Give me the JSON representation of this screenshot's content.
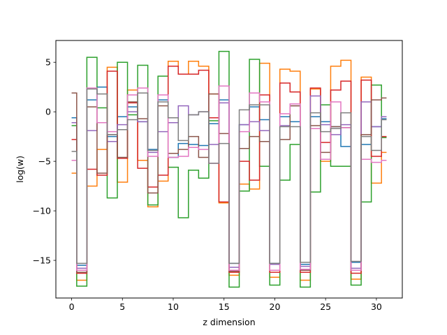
{
  "chart_data": {
    "type": "line",
    "drawstyle": "steps-mid",
    "xlabel": "z dimension",
    "ylabel": "log(w)",
    "xlim": [
      -1.55,
      32.55
    ],
    "ylim": [
      -18.8,
      7.2
    ],
    "xticks": [
      0,
      5,
      10,
      15,
      20,
      25,
      30
    ],
    "yticks": [
      -15,
      -10,
      -5,
      0,
      5
    ],
    "grid": false,
    "legend": "none",
    "x": [
      0,
      1,
      2,
      3,
      4,
      5,
      6,
      7,
      8,
      9,
      10,
      11,
      12,
      13,
      14,
      15,
      16,
      17,
      18,
      19,
      20,
      21,
      22,
      23,
      24,
      25,
      26,
      27,
      28,
      29,
      30,
      31
    ],
    "series": [
      {
        "color": "#1f77b4",
        "values": [
          -0.6,
          -15.5,
          1.2,
          2.5,
          -2.5,
          -0.5,
          0.5,
          -1.0,
          -3.8,
          1.2,
          -4.6,
          -3.2,
          -3.3,
          -3.4,
          -1.2,
          1.2,
          -15.3,
          -1.3,
          0.5,
          -0.8,
          -15.3,
          -0.5,
          -1.0,
          -15.4,
          -0.5,
          -1.0,
          -1.5,
          -3.5,
          -15.2,
          -3.3,
          -1.5,
          -0.7
        ]
      },
      {
        "color": "#ff7f0e",
        "values": [
          -6.2,
          -17.0,
          -7.5,
          -3.8,
          4.5,
          -7.1,
          2.2,
          -4.9,
          -9.6,
          -7.0,
          5.1,
          3.8,
          5.1,
          4.6,
          1.8,
          -9.2,
          -16.5,
          -7.3,
          -7.8,
          4.9,
          -16.7,
          4.3,
          4.1,
          -17.0,
          2.3,
          -5.0,
          4.6,
          5.2,
          -16.9,
          3.5,
          -7.2,
          -4.1
        ]
      },
      {
        "color": "#2ca02c",
        "values": [
          -1.4,
          -17.6,
          5.5,
          0.4,
          -8.7,
          5.0,
          -0.3,
          4.7,
          -9.4,
          3.6,
          -5.6,
          -10.7,
          -5.9,
          -6.7,
          -0.9,
          6.1,
          -17.7,
          -8.0,
          5.3,
          -5.5,
          -17.5,
          -6.9,
          -3.3,
          -17.7,
          -8.1,
          0.7,
          -5.5,
          -5.5,
          -17.5,
          -9.1,
          2.7,
          -2.6
        ]
      },
      {
        "color": "#d62728",
        "values": [
          -2.8,
          -16.3,
          -5.8,
          -6.4,
          4.1,
          -4.7,
          0.9,
          -5.7,
          -7.6,
          -6.4,
          4.6,
          3.8,
          3.8,
          4.2,
          -0.6,
          -9.1,
          -16.2,
          -5.0,
          -6.9,
          1.7,
          -16.2,
          2.9,
          2.0,
          -16.2,
          2.4,
          -3.1,
          2.2,
          3.1,
          -16.3,
          3.2,
          -4.5,
          -2.5
        ]
      },
      {
        "color": "#9467bd",
        "values": [
          -1.1,
          -15.8,
          -1.9,
          -1.1,
          -3.0,
          -1.3,
          0.0,
          -1.0,
          -4.1,
          -2.0,
          -1.1,
          0.6,
          -0.3,
          0.0,
          -3.3,
          0.9,
          -15.7,
          -1.3,
          -1.0,
          -1.9,
          -15.4,
          -1.4,
          0.6,
          -15.6,
          1.6,
          -1.3,
          -2.3,
          -1.3,
          -15.8,
          1.0,
          -1.5,
          -0.5
        ]
      },
      {
        "color": "#8c564b",
        "values": [
          1.9,
          -16.2,
          0.5,
          -6.2,
          -2.3,
          -4.6,
          1.0,
          -0.7,
          -8.2,
          0.6,
          -4.2,
          -3.8,
          -2.5,
          -4.6,
          1.8,
          -2.2,
          -16.1,
          -3.7,
          -2.5,
          -3.0,
          -16.0,
          -2.8,
          0.6,
          -16.0,
          -1.4,
          -4.1,
          -1.5,
          -1.6,
          -16.0,
          -2.3,
          1.2,
          1.4
        ]
      },
      {
        "color": "#e377c2",
        "values": [
          -4.9,
          -16.0,
          2.4,
          -1.1,
          -2.0,
          -1.8,
          1.7,
          2.4,
          -4.5,
          1.7,
          -4.6,
          -4.5,
          -3.6,
          -3.8,
          -5.2,
          2.6,
          -16.0,
          -2.0,
          1.9,
          1.0,
          -16.0,
          -0.2,
          0.8,
          -15.9,
          -1.7,
          -4.8,
          1.0,
          -1.6,
          -16.0,
          -4.8,
          -5.1,
          -4.9
        ]
      },
      {
        "color": "#7f7f7f",
        "values": [
          -4.0,
          -15.3,
          2.3,
          1.8,
          -2.3,
          -1.8,
          -0.8,
          1.9,
          -3.9,
          1.0,
          -0.6,
          -2.9,
          -0.3,
          0.0,
          -5.2,
          -3.2,
          -15.3,
          0.2,
          0.7,
          0.7,
          -15.3,
          -1.5,
          -1.5,
          -15.2,
          -0.1,
          -2.0,
          -1.7,
          -0.1,
          -15.1,
          -2.5,
          -3.9,
          -0.8
        ]
      }
    ]
  }
}
